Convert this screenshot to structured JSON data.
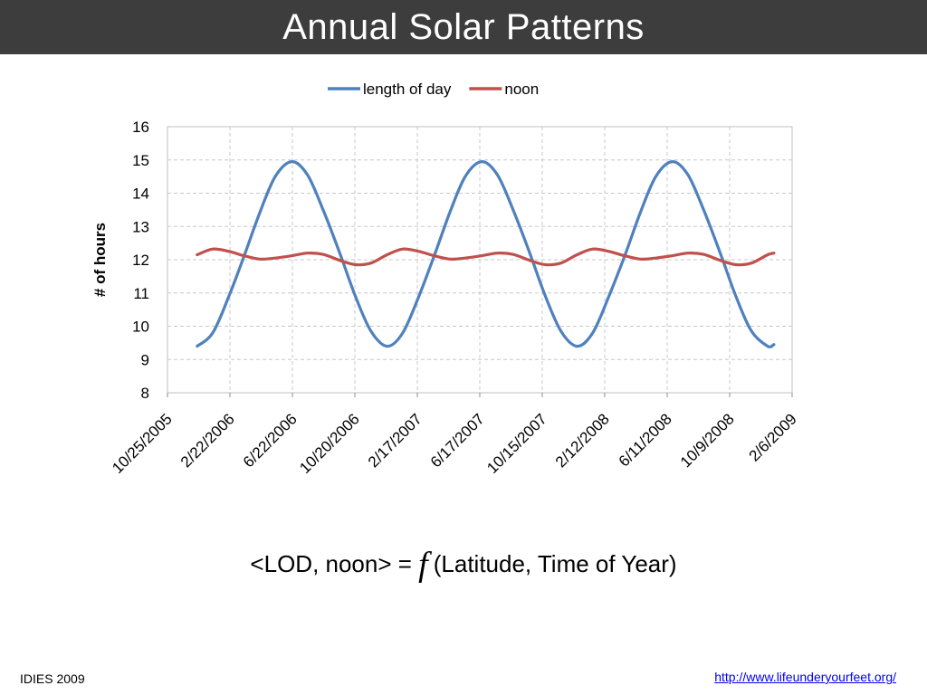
{
  "slide": {
    "title": "Annual Solar Patterns",
    "formula_left": "<LOD, noon> = ",
    "formula_symbol": "f",
    "formula_right": "(Latitude, Time of Year)",
    "footer_left": "IDIES 2009",
    "footer_link": "http://www.lifeunderyourfeet.org/"
  },
  "chart_data": {
    "type": "line",
    "title": "",
    "xlabel": "",
    "ylabel": "# of hours",
    "ylim": [
      8,
      16
    ],
    "yticks": [
      8,
      9,
      10,
      11,
      12,
      13,
      14,
      15,
      16
    ],
    "grid": true,
    "legend_position": "top-center",
    "x_tick_labels": [
      "10/25/2005",
      "2/22/2006",
      "6/22/2006",
      "10/20/2006",
      "2/17/2007",
      "6/17/2007",
      "10/15/2007",
      "2/12/2008",
      "6/11/2008",
      "10/9/2008",
      "2/6/2009"
    ],
    "series": [
      {
        "name": "length of day",
        "color": "#4f81bd",
        "points": [
          [
            "12/21/2005",
            9.4
          ],
          [
            "1/20/2006",
            9.8
          ],
          [
            "2/20/2006",
            10.9
          ],
          [
            "3/21/2006",
            12.1
          ],
          [
            "4/20/2006",
            13.4
          ],
          [
            "5/20/2006",
            14.5
          ],
          [
            "6/21/2006",
            14.95
          ],
          [
            "7/21/2006",
            14.55
          ],
          [
            "8/20/2006",
            13.5
          ],
          [
            "9/21/2006",
            12.2
          ],
          [
            "10/21/2006",
            10.9
          ],
          [
            "11/20/2006",
            9.85
          ],
          [
            "12/21/2006",
            9.4
          ],
          [
            "1/20/2007",
            9.8
          ],
          [
            "2/20/2007",
            10.9
          ],
          [
            "3/21/2007",
            12.1
          ],
          [
            "4/20/2007",
            13.4
          ],
          [
            "5/20/2007",
            14.5
          ],
          [
            "6/21/2007",
            14.95
          ],
          [
            "7/21/2007",
            14.55
          ],
          [
            "8/20/2007",
            13.5
          ],
          [
            "9/21/2007",
            12.2
          ],
          [
            "10/21/2007",
            10.9
          ],
          [
            "11/20/2007",
            9.85
          ],
          [
            "12/21/2007",
            9.4
          ],
          [
            "1/20/2008",
            9.8
          ],
          [
            "2/20/2008",
            10.9
          ],
          [
            "3/21/2008",
            12.1
          ],
          [
            "4/20/2008",
            13.4
          ],
          [
            "5/20/2008",
            14.5
          ],
          [
            "6/21/2008",
            14.95
          ],
          [
            "7/21/2008",
            14.55
          ],
          [
            "8/20/2008",
            13.5
          ],
          [
            "9/21/2008",
            12.2
          ],
          [
            "10/21/2008",
            10.9
          ],
          [
            "11/20/2008",
            9.85
          ],
          [
            "12/21/2008",
            9.4
          ],
          [
            "1/2/2009",
            9.45
          ]
        ]
      },
      {
        "name": "noon",
        "color": "#c0504d",
        "points": [
          [
            "12/21/2005",
            12.15
          ],
          [
            "1/20/2006",
            12.32
          ],
          [
            "2/20/2006",
            12.25
          ],
          [
            "3/21/2006",
            12.12
          ],
          [
            "4/20/2006",
            12.02
          ],
          [
            "5/20/2006",
            12.05
          ],
          [
            "6/21/2006",
            12.12
          ],
          [
            "7/21/2006",
            12.2
          ],
          [
            "8/20/2006",
            12.16
          ],
          [
            "9/21/2006",
            11.98
          ],
          [
            "10/21/2006",
            11.85
          ],
          [
            "11/20/2006",
            11.9
          ],
          [
            "12/21/2006",
            12.15
          ],
          [
            "1/20/2007",
            12.32
          ],
          [
            "2/20/2007",
            12.25
          ],
          [
            "3/21/2007",
            12.12
          ],
          [
            "4/20/2007",
            12.02
          ],
          [
            "5/20/2007",
            12.05
          ],
          [
            "6/21/2007",
            12.12
          ],
          [
            "7/21/2007",
            12.2
          ],
          [
            "8/20/2007",
            12.16
          ],
          [
            "9/21/2007",
            11.98
          ],
          [
            "10/21/2007",
            11.85
          ],
          [
            "11/20/2007",
            11.9
          ],
          [
            "12/21/2007",
            12.15
          ],
          [
            "1/20/2008",
            12.32
          ],
          [
            "2/20/2008",
            12.25
          ],
          [
            "3/21/2008",
            12.12
          ],
          [
            "4/20/2008",
            12.02
          ],
          [
            "5/20/2008",
            12.05
          ],
          [
            "6/21/2008",
            12.12
          ],
          [
            "7/21/2008",
            12.2
          ],
          [
            "8/20/2008",
            12.16
          ],
          [
            "9/21/2008",
            11.98
          ],
          [
            "10/21/2008",
            11.85
          ],
          [
            "11/20/2008",
            11.9
          ],
          [
            "12/21/2008",
            12.15
          ],
          [
            "1/2/2009",
            12.2
          ]
        ]
      }
    ]
  }
}
